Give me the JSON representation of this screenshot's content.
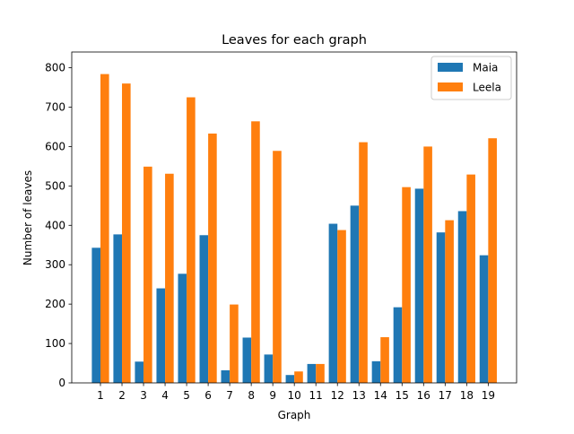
{
  "chart_data": {
    "type": "bar",
    "title": "Leaves for each graph",
    "xlabel": "Graph",
    "ylabel": "Number of leaves",
    "categories": [
      "1",
      "2",
      "3",
      "4",
      "5",
      "6",
      "7",
      "8",
      "9",
      "10",
      "11",
      "12",
      "13",
      "14",
      "15",
      "16",
      "17",
      "18",
      "19"
    ],
    "series": [
      {
        "name": "Maia",
        "color": "#1f77b4",
        "values": [
          343,
          377,
          54,
          240,
          277,
          375,
          32,
          115,
          72,
          20,
          48,
          404,
          450,
          55,
          192,
          493,
          382,
          436,
          324
        ]
      },
      {
        "name": "Leela",
        "color": "#ff7f0e",
        "values": [
          784,
          760,
          549,
          531,
          725,
          633,
          199,
          664,
          589,
          29,
          48,
          388,
          611,
          116,
          497,
          600,
          413,
          529,
          621
        ]
      }
    ],
    "ylim": [
      0,
      840
    ],
    "yticks": [
      0,
      100,
      200,
      300,
      400,
      500,
      600,
      700,
      800
    ],
    "grid": false,
    "legend_position": "top-right"
  }
}
